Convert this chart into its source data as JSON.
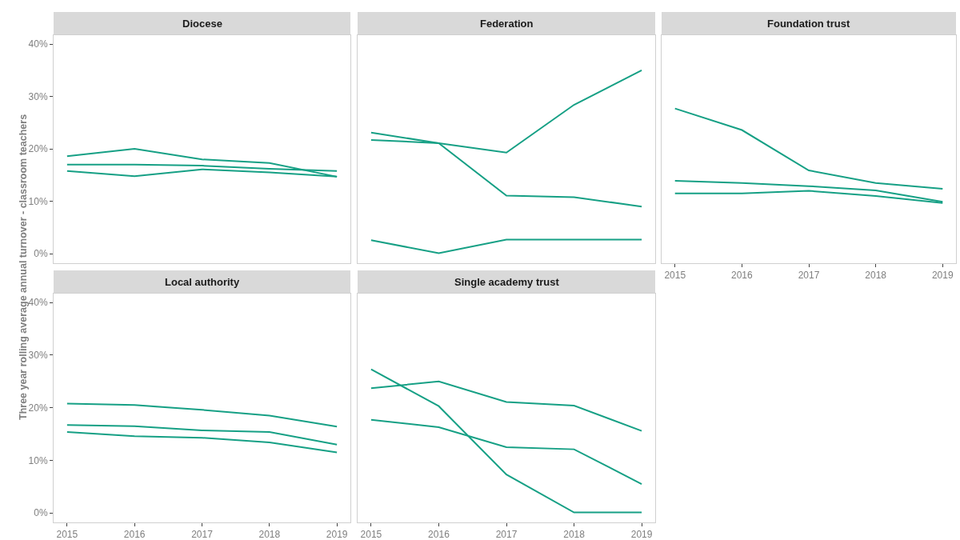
{
  "chart_data": [
    {
      "type": "line",
      "title": "Diocese",
      "x": [
        2015,
        2016,
        2017,
        2018,
        2019
      ],
      "xlim": [
        2014.8,
        2019.2
      ],
      "ylim": [
        -1.8,
        41.7
      ],
      "yticks": [
        {
          "value": 0,
          "label": "0%"
        },
        {
          "value": 10,
          "label": "10%"
        },
        {
          "value": 20,
          "label": "20%"
        },
        {
          "value": 30,
          "label": "30%"
        },
        {
          "value": 40,
          "label": "40%"
        }
      ],
      "tick_labels": "y",
      "series": [
        {
          "color": "#16a085",
          "values": [
            18.6,
            20.0,
            18.0,
            17.3,
            14.7
          ]
        },
        {
          "color": "#16a085",
          "values": [
            17.0,
            17.0,
            16.8,
            16.2,
            15.8
          ]
        },
        {
          "color": "#16a085",
          "values": [
            15.8,
            14.8,
            16.1,
            15.5,
            14.7
          ]
        }
      ]
    },
    {
      "type": "line",
      "title": "Federation",
      "x": [
        2015,
        2016,
        2017,
        2018,
        2019
      ],
      "xlim": [
        2014.8,
        2019.2
      ],
      "ylim": [
        -1.8,
        41.7
      ],
      "tick_labels": false,
      "series": [
        {
          "color": "#16a085",
          "values": [
            23.1,
            21.1,
            19.3,
            28.4,
            35.0
          ]
        },
        {
          "color": "#16a085",
          "values": [
            21.7,
            21.1,
            11.1,
            10.8,
            9.0
          ]
        },
        {
          "color": "#16a085",
          "values": [
            2.6,
            0.1,
            2.7,
            2.7,
            2.7
          ]
        }
      ]
    },
    {
      "type": "line",
      "title": "Foundation trust",
      "x": [
        2015,
        2016,
        2017,
        2018,
        2019
      ],
      "xlim": [
        2014.8,
        2019.2
      ],
      "xticks": [
        2015,
        2016,
        2017,
        2018,
        2019
      ],
      "ylim": [
        -1.8,
        41.7
      ],
      "tick_labels": "x",
      "series": [
        {
          "color": "#16a085",
          "values": [
            27.7,
            23.6,
            15.9,
            13.5,
            12.4
          ]
        },
        {
          "color": "#16a085",
          "values": [
            13.9,
            13.5,
            12.9,
            12.1,
            9.9
          ]
        },
        {
          "color": "#16a085",
          "values": [
            11.5,
            11.5,
            12.0,
            11.0,
            9.7
          ]
        }
      ]
    },
    {
      "type": "line",
      "title": "Local authority",
      "ylabel": "Three year rolling average annual turnover - classroom teachers",
      "x": [
        2015,
        2016,
        2017,
        2018,
        2019
      ],
      "xlim": [
        2014.8,
        2019.2
      ],
      "xticks": [
        2015,
        2016,
        2017,
        2018,
        2019
      ],
      "ylim": [
        -1.8,
        41.7
      ],
      "yticks": [
        {
          "value": 0,
          "label": "0%"
        },
        {
          "value": 10,
          "label": "10%"
        },
        {
          "value": 20,
          "label": "20%"
        },
        {
          "value": 30,
          "label": "30%"
        },
        {
          "value": 40,
          "label": "40%"
        }
      ],
      "series": [
        {
          "color": "#16a085",
          "values": [
            20.8,
            20.5,
            19.6,
            18.5,
            16.4
          ]
        },
        {
          "color": "#16a085",
          "values": [
            16.7,
            16.5,
            15.7,
            15.4,
            13.0
          ]
        },
        {
          "color": "#16a085",
          "values": [
            15.4,
            14.6,
            14.3,
            13.4,
            11.5
          ]
        }
      ]
    },
    {
      "type": "line",
      "title": "Single academy trust",
      "x": [
        2015,
        2016,
        2017,
        2018,
        2019
      ],
      "xlim": [
        2014.8,
        2019.2
      ],
      "xticks": [
        2015,
        2016,
        2017,
        2018,
        2019
      ],
      "ylim": [
        -1.8,
        41.7
      ],
      "tick_labels": "x",
      "series": [
        {
          "color": "#16a085",
          "values": [
            27.3,
            20.3,
            7.3,
            0.1,
            0.1
          ]
        },
        {
          "color": "#16a085",
          "values": [
            23.7,
            25.0,
            21.1,
            20.4,
            15.6
          ]
        },
        {
          "color": "#16a085",
          "values": [
            17.7,
            16.3,
            12.5,
            12.1,
            5.5
          ]
        }
      ]
    }
  ]
}
